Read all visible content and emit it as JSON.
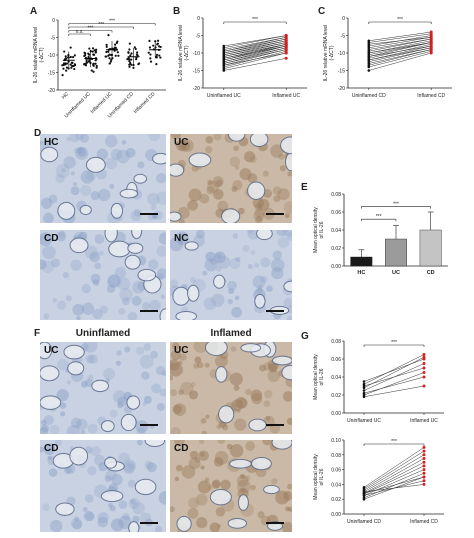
{
  "panels": {
    "A": "A",
    "B": "B",
    "C": "C",
    "D": "D",
    "E": "E",
    "F": "F",
    "G": "G"
  },
  "colors": {
    "dot": "#111111",
    "red": "#d32020",
    "line": "#333333",
    "bar_hc": "#1a1a1a",
    "bar_uc": "#9b9b9b",
    "bar_cd": "#c4c4c4",
    "tissue_blue": "#8fa3c8",
    "tissue_brown": "#9a7a5c",
    "bg_light": "#e8ecf2"
  },
  "micrographs_d": [
    {
      "label": "HC"
    },
    {
      "label": "UC"
    },
    {
      "label": "CD"
    },
    {
      "label": "NC"
    }
  ],
  "micrographs_f": {
    "col_uninflamed": "Uninflamed",
    "col_inflamed": "Inflamed",
    "rows": [
      {
        "left": "UC",
        "right": "UC"
      },
      {
        "left": "CD",
        "right": "CD"
      }
    ]
  },
  "chart_data": [
    {
      "panel": "A",
      "type": "scatter",
      "ylabel": "IL-26 relative mRNA level\n(-ΔCT)",
      "categories": [
        "HC",
        "Uninflamed UC",
        "Inflamed UC",
        "Uninflamed CD",
        "Inflamed CD"
      ],
      "ylim": [
        -20,
        0
      ],
      "yticks": [
        "0",
        "-5",
        "-10",
        "-15",
        "-20"
      ],
      "ytick_values": [
        0,
        -5,
        -10,
        -15,
        -20
      ],
      "means": [
        -11.5,
        -11.0,
        -8.5,
        -10.5,
        -8.5
      ],
      "sd": [
        2.5,
        2.5,
        2.5,
        2.5,
        2.5
      ],
      "points_per_group": [
        34,
        44,
        32,
        26,
        22
      ],
      "significance": [
        {
          "from": 0,
          "to": 1,
          "label": "n.s."
        },
        {
          "from": 0,
          "to": 2,
          "label": "***"
        },
        {
          "from": 0,
          "to": 3,
          "label": "***"
        },
        {
          "from": 0,
          "to": 4,
          "label": "***"
        }
      ]
    },
    {
      "panel": "B",
      "type": "line",
      "ylabel": "IL-26 relative mRNA level\n(-ΔCT)",
      "categories": [
        "Uninflamed UC",
        "Inflamed UC"
      ],
      "ylim": [
        -20,
        0
      ],
      "yticks": [
        "0",
        "-5",
        "-10",
        "-15",
        "-20"
      ],
      "ytick_values": [
        0,
        -5,
        -10,
        -15,
        -20
      ],
      "pairs": [
        [
          -15,
          -11.5
        ],
        [
          -14.5,
          -10
        ],
        [
          -14,
          -9.5
        ],
        [
          -13.5,
          -10
        ],
        [
          -13.5,
          -9
        ],
        [
          -13,
          -9
        ],
        [
          -13,
          -8.5
        ],
        [
          -12.5,
          -8.5
        ],
        [
          -12.5,
          -8
        ],
        [
          -12,
          -8
        ],
        [
          -12,
          -7.5
        ],
        [
          -11.5,
          -8
        ],
        [
          -11.5,
          -7.5
        ],
        [
          -11,
          -7
        ],
        [
          -11,
          -7.5
        ],
        [
          -10.5,
          -7
        ],
        [
          -10.5,
          -6.5
        ],
        [
          -10,
          -6.5
        ],
        [
          -10,
          -6
        ],
        [
          -9.5,
          -6
        ],
        [
          -9.5,
          -5.5
        ],
        [
          -9,
          -5.5
        ],
        [
          -8.5,
          -5
        ],
        [
          -8,
          -5
        ]
      ],
      "significance": [
        {
          "from": 0,
          "to": 1,
          "label": "***"
        }
      ]
    },
    {
      "panel": "C",
      "type": "line",
      "ylabel": "IL-26 relative mRNA level\n(-ΔCT)",
      "categories": [
        "Uninflamed CD",
        "Inflamed CD"
      ],
      "ylim": [
        -20,
        0
      ],
      "yticks": [
        "0",
        "-5",
        "-10",
        "-15",
        "-20"
      ],
      "ytick_values": [
        0,
        -5,
        -10,
        -15,
        -20
      ],
      "pairs": [
        [
          -15,
          -10
        ],
        [
          -14,
          -9.5
        ],
        [
          -13.5,
          -9
        ],
        [
          -13,
          -9
        ],
        [
          -12.5,
          -8.5
        ],
        [
          -12,
          -8
        ],
        [
          -12,
          -8.5
        ],
        [
          -11.5,
          -7.5
        ],
        [
          -11,
          -8
        ],
        [
          -11,
          -7
        ],
        [
          -10.5,
          -7
        ],
        [
          -10,
          -6.5
        ],
        [
          -10,
          -7
        ],
        [
          -9.5,
          -6
        ],
        [
          -9,
          -6
        ],
        [
          -8.5,
          -5.5
        ],
        [
          -8,
          -5
        ],
        [
          -7.5,
          -5.5
        ],
        [
          -7,
          -4.5
        ],
        [
          -6.5,
          -4
        ]
      ],
      "significance": [
        {
          "from": 0,
          "to": 1,
          "label": "***"
        }
      ]
    },
    {
      "panel": "E",
      "type": "bar",
      "ylabel": "Mean optical density\nof IL-26",
      "categories": [
        "HC",
        "UC",
        "CD"
      ],
      "values": [
        0.01,
        0.03,
        0.04
      ],
      "errors": [
        0.008,
        0.015,
        0.02
      ],
      "ylim": [
        0,
        0.08
      ],
      "yticks": [
        "0.00",
        "0.02",
        "0.04",
        "0.06",
        "0.08"
      ],
      "ytick_values": [
        0,
        0.02,
        0.04,
        0.06,
        0.08
      ],
      "significance": [
        {
          "from": 0,
          "to": 1,
          "label": "***"
        },
        {
          "from": 0,
          "to": 2,
          "label": "***"
        }
      ]
    },
    {
      "panel": "G1",
      "type": "line",
      "ylabel": "Mean optical density\nof IL-26",
      "categories": [
        "Uninflamed UC",
        "Inflamed UC"
      ],
      "ylim": [
        0,
        0.08
      ],
      "yticks": [
        "0.00",
        "0.02",
        "0.04",
        "0.06",
        "0.08"
      ],
      "ytick_values": [
        0,
        0.02,
        0.04,
        0.06,
        0.08
      ],
      "pairs": [
        [
          0.02,
          0.045
        ],
        [
          0.025,
          0.055
        ],
        [
          0.028,
          0.062
        ],
        [
          0.03,
          0.05
        ],
        [
          0.032,
          0.065
        ],
        [
          0.035,
          0.06
        ],
        [
          0.018,
          0.03
        ],
        [
          0.022,
          0.04
        ]
      ],
      "significance": [
        {
          "from": 0,
          "to": 1,
          "label": "***"
        }
      ]
    },
    {
      "panel": "G2",
      "type": "line",
      "ylabel": "Mean optical density\nof IL-26",
      "categories": [
        "Uninflamed CD",
        "Inflamed CD"
      ],
      "ylim": [
        0,
        0.1
      ],
      "yticks": [
        "0.00",
        "0.02",
        "0.04",
        "0.06",
        "0.08",
        "0.10"
      ],
      "ytick_values": [
        0,
        0.02,
        0.04,
        0.06,
        0.08,
        0.1
      ],
      "pairs": [
        [
          0.02,
          0.05
        ],
        [
          0.022,
          0.055
        ],
        [
          0.025,
          0.06
        ],
        [
          0.027,
          0.065
        ],
        [
          0.028,
          0.07
        ],
        [
          0.03,
          0.075
        ],
        [
          0.032,
          0.08
        ],
        [
          0.034,
          0.085
        ],
        [
          0.025,
          0.045
        ],
        [
          0.03,
          0.04
        ],
        [
          0.028,
          0.05
        ],
        [
          0.036,
          0.09
        ]
      ],
      "significance": [
        {
          "from": 0,
          "to": 1,
          "label": "***"
        }
      ]
    }
  ]
}
